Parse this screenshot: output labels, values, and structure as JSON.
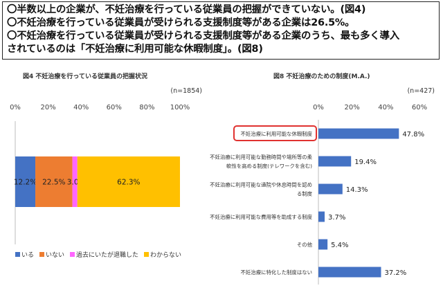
{
  "summary": {
    "lines": [
      "〇半数以上の企業が、不妊治療を行っている従業員の把握ができていない。(図4)",
      "〇不妊治療を行っている従業員が受けられる支援制度等がある企業は26.5%。",
      "〇不妊治療を行っている従業員が受けられる支援制度等がある企業のうち、最も多く導入",
      "されているのは「不妊治療に利用可能な休暇制度」。(図8)"
    ]
  },
  "chart_data": [
    {
      "type": "bar",
      "orientation": "horizontal-stacked",
      "title": "図4 不妊治療を行っている従業員の把握状況",
      "note": "(n=1854)",
      "xlim": [
        0,
        100
      ],
      "xticks": [
        "0%",
        "20%",
        "40%",
        "60%",
        "80%",
        "100%"
      ],
      "series": [
        {
          "name": "いる",
          "value": 12.2,
          "label": "12.2%",
          "color": "#4472c4"
        },
        {
          "name": "いない",
          "value": 22.5,
          "label": "22.5%",
          "color": "#ed7d31"
        },
        {
          "name": "過去にいたが退職した",
          "value": 3.0,
          "label": "3.0%",
          "color": "#ff66ff"
        },
        {
          "name": "わからない",
          "value": 62.3,
          "label": "62.3%",
          "color": "#ffc000"
        }
      ],
      "legend": "bottom"
    },
    {
      "type": "bar",
      "orientation": "horizontal",
      "title": "図8 不妊治療のための制度(M.A.)",
      "note": "(n=427)",
      "xlim": [
        0,
        60
      ],
      "xticks": [
        "0%",
        "20%",
        "40%",
        "60%"
      ],
      "color": "#4472c4",
      "highlight_color": "#e0312f",
      "categories": [
        {
          "label_lines": [
            "不妊治療に利用可能な休暇制度"
          ],
          "value": 47.8,
          "label": "47.8%",
          "highlight": true
        },
        {
          "label_lines": [
            "不妊治療に利用可能な勤務時間や場所等の柔",
            "軟性を高める制度(テレワークを含む)"
          ],
          "value": 19.4,
          "label": "19.4%"
        },
        {
          "label_lines": [
            "不妊治療に利用可能な通院や休息時間を認め",
            "る制度"
          ],
          "value": 14.3,
          "label": "14.3%"
        },
        {
          "label_lines": [
            "不妊治療に利用可能な費用等を助成する制度"
          ],
          "value": 3.7,
          "label": "3.7%"
        },
        {
          "label_lines": [
            "その他"
          ],
          "value": 5.4,
          "label": "5.4%"
        },
        {
          "label_lines": [
            "不妊治療に特化した制度はない"
          ],
          "value": 37.2,
          "label": "37.2%"
        }
      ]
    }
  ]
}
